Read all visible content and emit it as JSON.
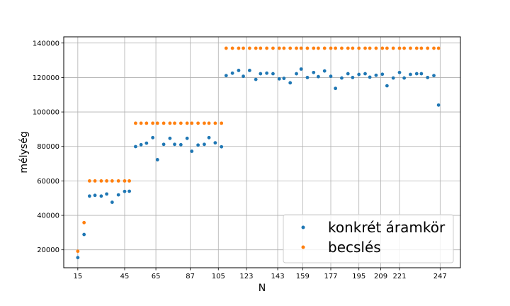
{
  "chart_data": {
    "type": "scatter",
    "title": "",
    "xlabel": "N",
    "ylabel": "mélység",
    "xlim": [
      6,
      260
    ],
    "ylim": [
      9600,
      143600
    ],
    "xticks": [
      15,
      45,
      65,
      87,
      105,
      123,
      143,
      159,
      177,
      195,
      209,
      221,
      247
    ],
    "xtick_labels": [
      "15",
      "45",
      "65",
      "87",
      "105",
      "123",
      "143",
      "159",
      "177",
      "195",
      "209",
      "221",
      "247"
    ],
    "yticks": [
      20000,
      40000,
      60000,
      80000,
      100000,
      120000,
      140000
    ],
    "ytick_labels": [
      "20000",
      "40000",
      "60000",
      "80000",
      "100000",
      "120000",
      "140000"
    ],
    "grid": true,
    "legend_position": "lower-right",
    "series": [
      {
        "name": "konkrét áramkör",
        "color": "#1f77b4",
        "x": [
          15,
          19,
          22.5,
          26,
          30,
          33.5,
          37,
          41,
          45,
          48,
          52,
          55.5,
          59,
          63,
          66,
          70,
          74,
          77,
          81,
          85,
          88,
          92,
          96,
          99,
          103,
          107,
          110,
          114,
          118,
          121,
          125,
          129,
          132,
          136,
          140,
          144,
          147,
          151,
          155,
          158,
          162,
          166,
          169,
          173,
          177,
          180,
          184,
          188,
          191,
          195,
          199,
          202,
          206,
          210,
          213,
          217,
          221,
          224,
          228,
          232,
          235,
          239,
          243,
          246
        ],
        "y": [
          15500,
          28900,
          51200,
          51600,
          51200,
          52400,
          47600,
          51900,
          53900,
          54000,
          79900,
          81000,
          81900,
          85100,
          72300,
          81200,
          84700,
          81200,
          81000,
          84700,
          77200,
          80800,
          81200,
          85100,
          82100,
          79800,
          121100,
          122500,
          124100,
          120700,
          124100,
          118900,
          122200,
          122500,
          122200,
          119200,
          119500,
          116900,
          122200,
          124900,
          120000,
          122900,
          120500,
          123800,
          120700,
          113700,
          119700,
          122200,
          120000,
          121800,
          122200,
          120200,
          121300,
          121900,
          115200,
          119700,
          122900,
          119700,
          121800,
          122200,
          122200,
          120000,
          121100,
          104000
        ]
      },
      {
        "name": "becslés",
        "color": "#ff7f0e",
        "x": [
          15,
          19,
          22.5,
          26,
          30,
          33.5,
          37,
          41,
          45,
          48,
          52,
          55.5,
          59,
          63,
          66,
          70,
          74,
          77,
          81,
          85,
          88,
          92,
          96,
          99,
          103,
          107,
          110,
          114,
          118,
          121,
          125,
          129,
          132,
          136,
          140,
          144,
          147,
          151,
          155,
          158,
          162,
          166,
          169,
          173,
          177,
          180,
          184,
          188,
          191,
          195,
          199,
          202,
          206,
          210,
          213,
          217,
          221,
          224,
          228,
          232,
          235,
          239,
          243,
          246
        ],
        "y": [
          19200,
          35800,
          60000,
          60000,
          60000,
          60000,
          60000,
          60000,
          60000,
          60000,
          93500,
          93500,
          93500,
          93500,
          93500,
          93500,
          93500,
          93500,
          93500,
          93500,
          93500,
          93500,
          93500,
          93500,
          93500,
          93500,
          137000,
          137000,
          137000,
          137000,
          137000,
          137000,
          137000,
          137000,
          137000,
          137000,
          137000,
          137000,
          137000,
          137000,
          137000,
          137000,
          137000,
          137000,
          137000,
          137000,
          137000,
          137000,
          137000,
          137000,
          137000,
          137000,
          137000,
          137000,
          137000,
          137000,
          137000,
          137000,
          137000,
          137000,
          137000,
          137000,
          137000,
          137000
        ]
      }
    ]
  }
}
